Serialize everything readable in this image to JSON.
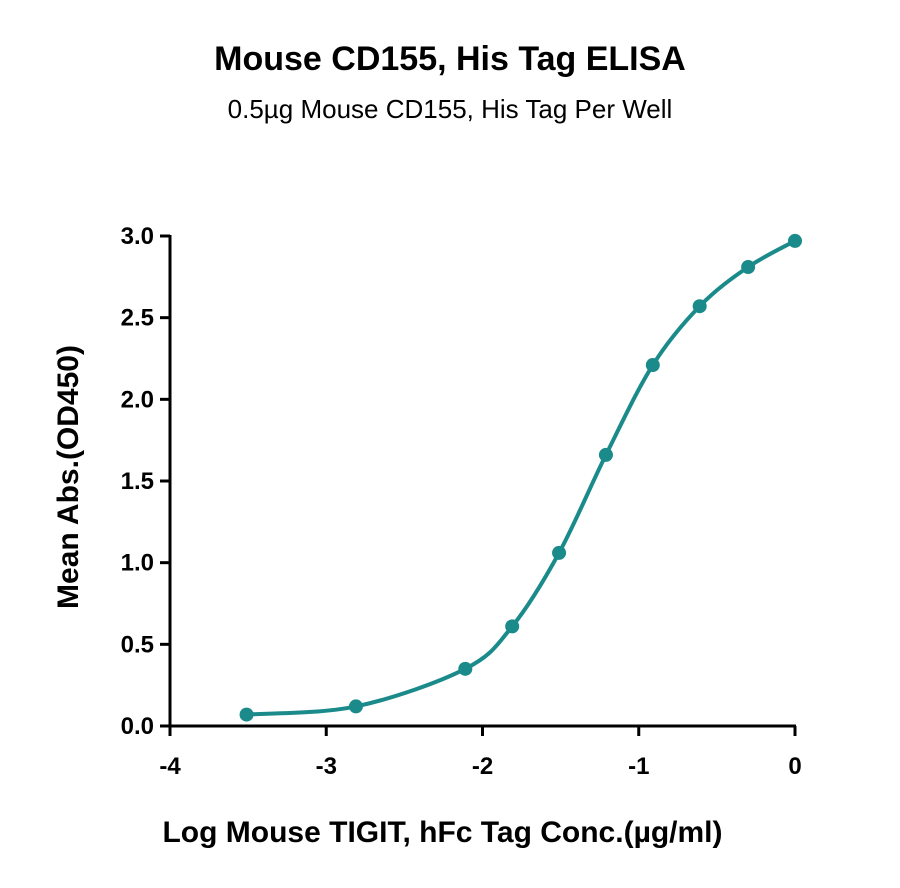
{
  "chart_data": {
    "type": "scatter",
    "title": "Mouse CD155, His Tag ELISA",
    "subtitle": "0.5µg Mouse CD155, His Tag Per Well",
    "xlabel": "Log Mouse TIGIT, hFc Tag Conc.(µg/ml)",
    "ylabel": "Mean Abs.(OD450)",
    "xlim": [
      -4,
      0
    ],
    "ylim": [
      0,
      3.0
    ],
    "xticks": [
      -4,
      -3,
      -2,
      -1,
      0
    ],
    "xtick_labels": [
      "-4",
      "-3",
      "-2",
      "-1",
      "0"
    ],
    "yticks": [
      0,
      0.5,
      1.0,
      1.5,
      2.0,
      2.5,
      3.0
    ],
    "ytick_labels": [
      "0.0",
      "0.5",
      "1.0",
      "1.5",
      "2.0",
      "2.5",
      "3.0"
    ],
    "grid": false,
    "color": "#1a8a8a",
    "fit": "sigmoidal",
    "points": {
      "x": [
        -3.51,
        -2.81,
        -2.11,
        -1.81,
        -1.51,
        -1.21,
        -0.91,
        -0.61,
        -0.3,
        0.0
      ],
      "y": [
        0.07,
        0.12,
        0.35,
        0.61,
        1.06,
        1.66,
        2.21,
        2.57,
        2.81,
        2.97
      ]
    }
  }
}
